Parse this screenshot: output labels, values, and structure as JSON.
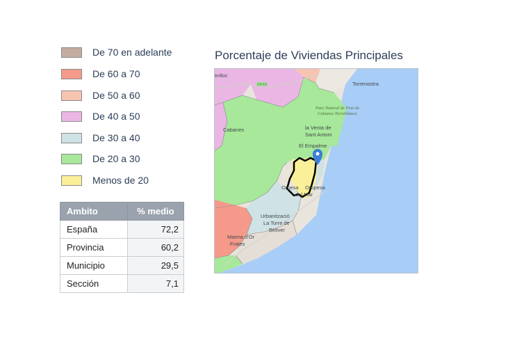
{
  "legend": {
    "items": [
      {
        "label": "De 70 en adelante",
        "color": "#c3aca0"
      },
      {
        "label": "De 60 a 70",
        "color": "#f59a8a"
      },
      {
        "label": "De 50 a 60",
        "color": "#f8c4b2"
      },
      {
        "label": "De 40 a 50",
        "color": "#eab6e4"
      },
      {
        "label": "De 30 a 40",
        "color": "#cfe2e6"
      },
      {
        "label": "De 20 a 30",
        "color": "#a7e89a"
      },
      {
        "label": "Menos de 20",
        "color": "#fbf09a"
      }
    ]
  },
  "table": {
    "headers": {
      "ambito": "Ambito",
      "medio": "% medio"
    },
    "rows": [
      {
        "ambito": "España",
        "value": "72,2"
      },
      {
        "ambito": "Provincia",
        "value": "60,2"
      },
      {
        "ambito": "Municipio",
        "value": "29,5"
      },
      {
        "ambito": "Sección",
        "value": "7,1"
      }
    ]
  },
  "map": {
    "title": "Porcentaje de Viviendas Principales",
    "labels": {
      "benlloc": "enlloc",
      "road_cv13": "CV-13",
      "torrenostra": "Torrenostra",
      "park_line1": "Parc Natural de Prat de",
      "park_line2": "Cabanes-Torreblanca",
      "cabanes": "Cabanes",
      "venta_line1": "la Venta de",
      "venta_line2": "Sant Antoni",
      "empalme": "El Empalme",
      "oropesa_line1": "Orpesa",
      "oropesa_line2": "Oropesa",
      "oropesa_line3": "del Mar",
      "urb_line1": "Urbanització",
      "urb_line2": "La Torre de",
      "urb_line3": "Bellver",
      "marina_line1": "Marina d'Or",
      "marina_line2": "Frates"
    },
    "colors": {
      "sea": "#a8cdf7",
      "land": "#e9e5dd",
      "marker": "#3d7fd6"
    }
  }
}
